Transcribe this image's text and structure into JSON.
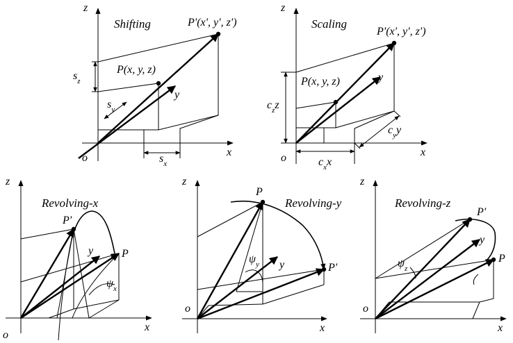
{
  "panels": {
    "shifting": {
      "title": "Shifting",
      "z": "z",
      "y": "y",
      "x": "x",
      "o": "o",
      "p_prime": "P'(x', y', z')",
      "p": "P(x, y, z)",
      "sz": "s",
      "sz_sub": "z",
      "sy": "s",
      "sy_sub": "y",
      "sx": "s",
      "sx_sub": "x"
    },
    "scaling": {
      "title": "Scaling",
      "z": "z",
      "y": "y",
      "x": "x",
      "o": "o",
      "p_prime": "P'(x', y', z')",
      "p": "P(x, y, z)",
      "czz": "c",
      "czz_sub": "z",
      "czz_tail": "z",
      "cyy": "c",
      "cyy_sub": "y",
      "cyy_tail": "y",
      "cxx": "c",
      "cxx_sub": "x",
      "cxx_tail": "x"
    },
    "revolving_x": {
      "title": "Revolving-x",
      "z": "z",
      "y": "y",
      "x": "x",
      "o": "o",
      "p_prime": "P'",
      "p": "P",
      "psi": "ψ",
      "psi_sub": "x"
    },
    "revolving_y": {
      "title": "Revolving-y",
      "z": "z",
      "y": "y",
      "x": "x",
      "o": "o",
      "p_prime": "P'",
      "p": "P",
      "psi": "ψ",
      "psi_sub": "y"
    },
    "revolving_z": {
      "title": "Revolving-z",
      "z": "z",
      "y": "y",
      "x": "x",
      "o": "o",
      "p_prime": "P'",
      "p": "P",
      "psi": "ψ",
      "psi_sub": "z"
    }
  }
}
